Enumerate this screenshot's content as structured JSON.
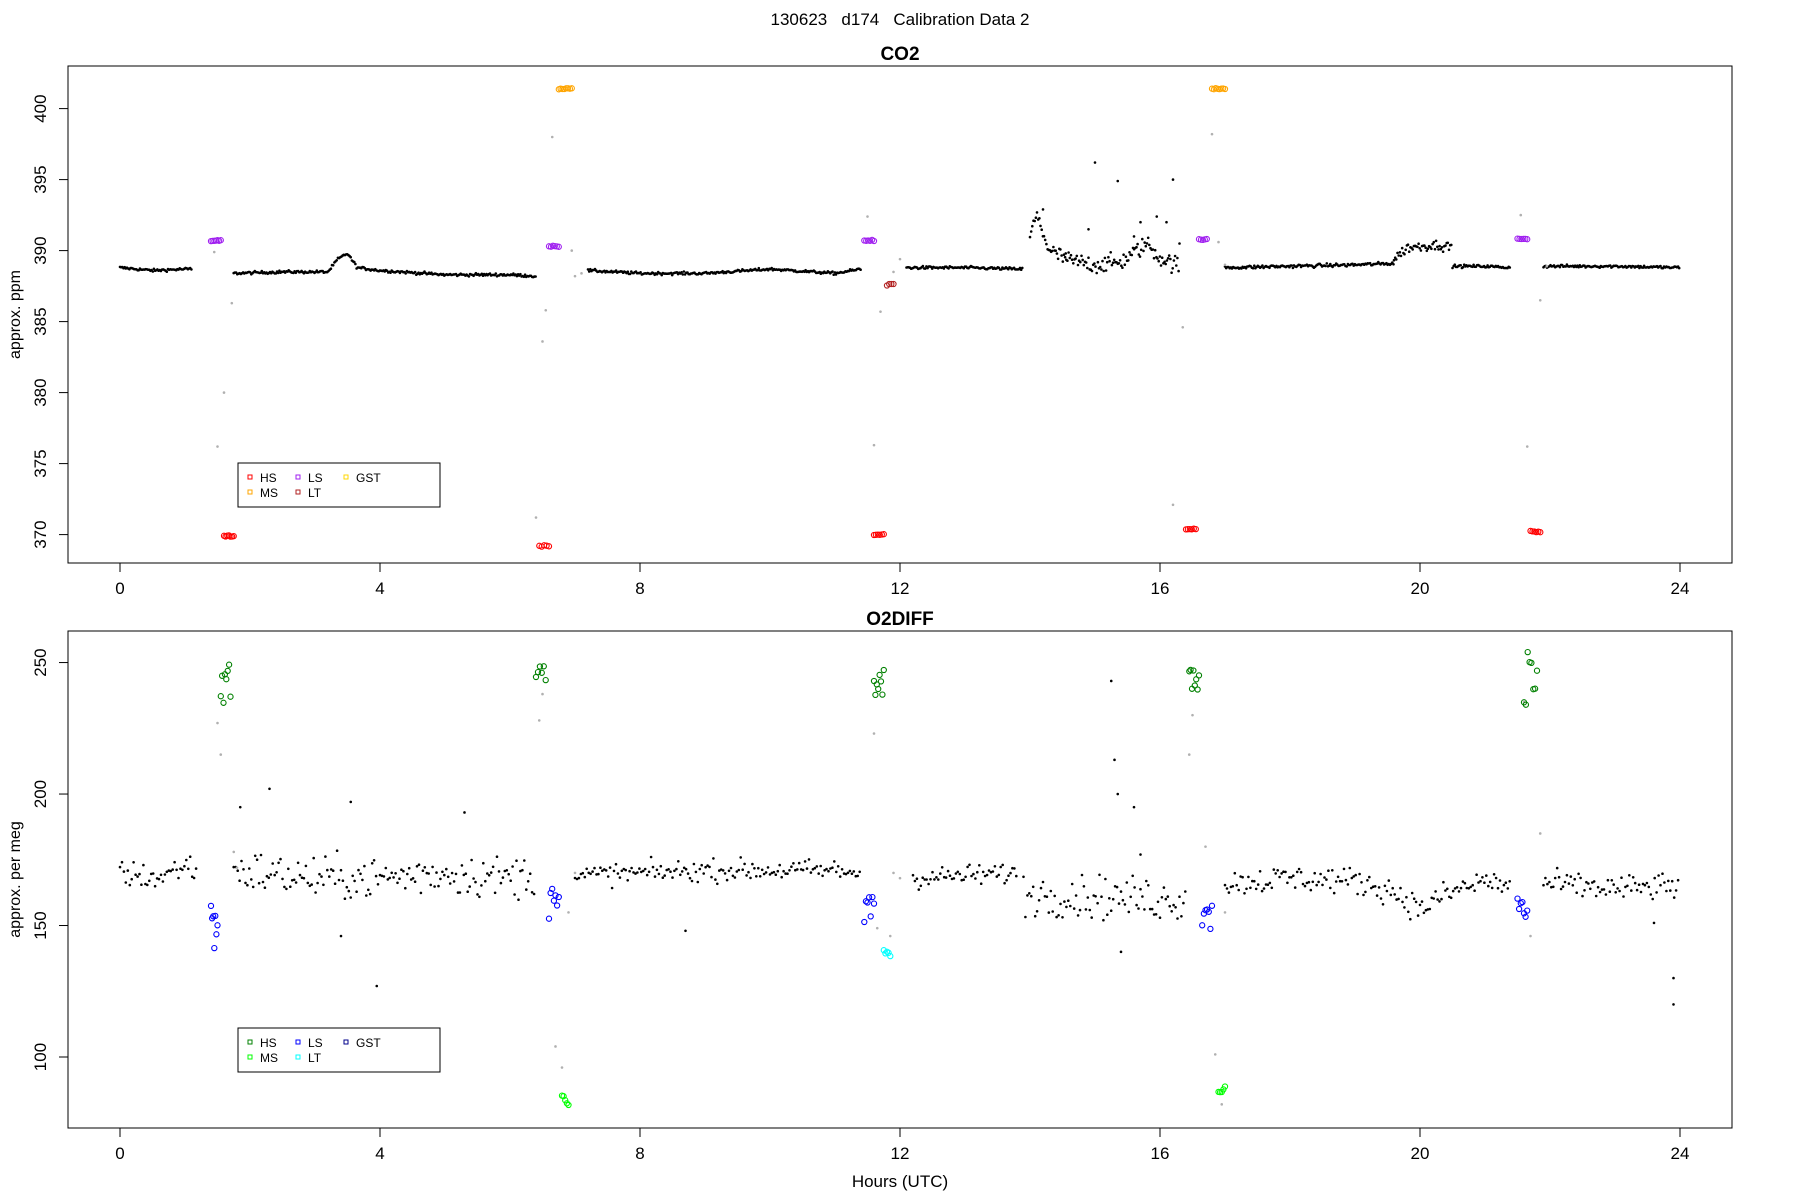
{
  "figure": {
    "title": "130623   d174   Calibration Data 2",
    "xlabel": "Hours (UTC)"
  },
  "chart_data": [
    {
      "type": "scatter",
      "id": "co2",
      "title": "CO2",
      "xlabel": "",
      "ylabel": "approx. ppm",
      "xlim": [
        -0.8,
        24.8
      ],
      "ylim": [
        368,
        403
      ],
      "xticks": [
        0,
        4,
        8,
        12,
        16,
        20,
        24
      ],
      "yticks": [
        370,
        375,
        380,
        385,
        390,
        395,
        400
      ],
      "grid": false,
      "legend": {
        "placement": "bottom-left",
        "entries": [
          {
            "label": "HS",
            "color": "#ff0000"
          },
          {
            "label": "MS",
            "color": "#ffa500"
          },
          {
            "label": "LS",
            "color": "#a020f0"
          },
          {
            "label": "LT",
            "color": "#b22222"
          },
          {
            "label": "GST",
            "color": "#ffd700"
          }
        ]
      },
      "baseline_segments": [
        {
          "x": [
            0.0,
            0.5,
            1.0,
            1.1
          ],
          "y": [
            388.8,
            388.6,
            388.7,
            388.7
          ],
          "noise": 0.1,
          "color": "#000000"
        },
        {
          "x": [
            1.75,
            2.5,
            3.2,
            3.35,
            3.5,
            3.65,
            4.0,
            5.0,
            6.0,
            6.4
          ],
          "y": [
            388.4,
            388.5,
            388.5,
            389.4,
            389.8,
            388.8,
            388.6,
            388.3,
            388.3,
            388.2
          ],
          "noise": 0.1,
          "color": "#000000"
        },
        {
          "x": [
            7.2,
            8.0,
            9.0,
            10.0,
            11.0,
            11.4
          ],
          "y": [
            388.6,
            388.4,
            388.4,
            388.7,
            388.4,
            388.7
          ],
          "noise": 0.1,
          "color": "#000000"
        },
        {
          "x": [
            12.1,
            13.0,
            13.9
          ],
          "y": [
            388.8,
            388.8,
            388.7
          ],
          "noise": 0.1,
          "color": "#000000"
        },
        {
          "x": [
            14.0,
            14.1,
            14.3,
            14.6,
            15.0,
            15.4,
            15.8,
            16.0,
            16.3
          ],
          "y": [
            391.0,
            392.5,
            390.0,
            389.3,
            389.0,
            389.2,
            390.5,
            389.5,
            388.9
          ],
          "noise": 0.6,
          "color": "#000000"
        },
        {
          "x": [
            17.0,
            18.0,
            19.0,
            19.6
          ],
          "y": [
            388.8,
            388.9,
            389.0,
            389.1
          ],
          "noise": 0.12,
          "color": "#000000"
        },
        {
          "x": [
            19.6,
            19.8,
            20.0,
            20.3,
            20.5
          ],
          "y": [
            389.4,
            390.2,
            390.3,
            390.4,
            390.2
          ],
          "noise": 0.35,
          "color": "#000000"
        },
        {
          "x": [
            20.5,
            21.0,
            21.4
          ],
          "y": [
            388.9,
            388.9,
            388.8
          ],
          "noise": 0.1,
          "color": "#000000"
        },
        {
          "x": [
            21.9,
            23.0,
            24.0
          ],
          "y": [
            388.9,
            388.9,
            388.8
          ],
          "noise": 0.1,
          "color": "#000000"
        }
      ],
      "gray_points": [
        [
          1.5,
          376.2
        ],
        [
          1.6,
          380.0
        ],
        [
          1.72,
          386.3
        ],
        [
          1.45,
          389.9
        ],
        [
          6.4,
          371.2
        ],
        [
          6.5,
          383.6
        ],
        [
          6.55,
          385.8
        ],
        [
          6.65,
          398.0
        ],
        [
          6.95,
          390.0
        ],
        [
          7.0,
          388.2
        ],
        [
          7.1,
          388.4
        ],
        [
          11.5,
          392.4
        ],
        [
          11.6,
          376.3
        ],
        [
          11.7,
          385.7
        ],
        [
          11.9,
          388.5
        ],
        [
          12.0,
          389.4
        ],
        [
          16.2,
          372.1
        ],
        [
          16.35,
          384.6
        ],
        [
          16.8,
          398.2
        ],
        [
          17.0,
          389.0
        ],
        [
          16.9,
          390.6
        ],
        [
          21.55,
          392.5
        ],
        [
          21.65,
          376.2
        ],
        [
          21.85,
          386.5
        ],
        [
          21.95,
          388.9
        ]
      ],
      "outlier_points": [
        [
          14.2,
          392.9
        ],
        [
          14.55,
          389.8
        ],
        [
          15.0,
          396.2
        ],
        [
          15.35,
          394.9
        ],
        [
          15.7,
          392.0
        ],
        [
          16.2,
          395.0
        ],
        [
          15.95,
          392.4
        ],
        [
          16.1,
          392.0
        ],
        [
          16.3,
          390.5
        ],
        [
          14.9,
          391.5
        ],
        [
          15.6,
          391.0
        ]
      ],
      "cal_clusters": [
        {
          "gas": "LS",
          "color": "#a020f0",
          "x": [
            1.4,
            1.55
          ],
          "y": 390.7,
          "n": 7
        },
        {
          "gas": "HS",
          "color": "#ff0000",
          "x": [
            1.6,
            1.75
          ],
          "y": 369.9,
          "n": 7
        },
        {
          "gas": "HS",
          "color": "#ff0000",
          "x": [
            6.45,
            6.6
          ],
          "y": 369.2,
          "n": 5
        },
        {
          "gas": "LS",
          "color": "#a020f0",
          "x": [
            6.6,
            6.75
          ],
          "y": 390.3,
          "n": 6
        },
        {
          "gas": "MS",
          "color": "#ffa500",
          "x": [
            6.75,
            6.95
          ],
          "y": 401.4,
          "n": 8
        },
        {
          "gas": "LS",
          "color": "#a020f0",
          "x": [
            11.45,
            11.6
          ],
          "y": 390.7,
          "n": 6
        },
        {
          "gas": "HS",
          "color": "#ff0000",
          "x": [
            11.6,
            11.75
          ],
          "y": 370.0,
          "n": 6
        },
        {
          "gas": "LT",
          "color": "#b22222",
          "x": [
            11.8,
            11.9
          ],
          "y": 387.6,
          "n": 4
        },
        {
          "gas": "HS",
          "color": "#ff0000",
          "x": [
            16.4,
            16.55
          ],
          "y": 370.4,
          "n": 6
        },
        {
          "gas": "LS",
          "color": "#a020f0",
          "x": [
            16.6,
            16.72
          ],
          "y": 390.8,
          "n": 5
        },
        {
          "gas": "MS",
          "color": "#ffa500",
          "x": [
            16.8,
            17.0
          ],
          "y": 401.4,
          "n": 8
        },
        {
          "gas": "LS",
          "color": "#a020f0",
          "x": [
            21.5,
            21.65
          ],
          "y": 390.8,
          "n": 6
        },
        {
          "gas": "HS",
          "color": "#ff0000",
          "x": [
            21.7,
            21.85
          ],
          "y": 370.2,
          "n": 6
        }
      ]
    },
    {
      "type": "scatter",
      "id": "o2diff",
      "title": "O2DIFF",
      "xlabel": "Hours (UTC)",
      "ylabel": "approx. per meg",
      "xlim": [
        -0.8,
        24.8
      ],
      "ylim": [
        73,
        262
      ],
      "xticks": [
        0,
        4,
        8,
        12,
        16,
        20,
        24
      ],
      "yticks": [
        100,
        150,
        200,
        250
      ],
      "grid": false,
      "legend": {
        "placement": "bottom-left",
        "entries": [
          {
            "label": "HS",
            "color": "#008000"
          },
          {
            "label": "MS",
            "color": "#00ff00"
          },
          {
            "label": "LS",
            "color": "#0000ff"
          },
          {
            "label": "LT",
            "color": "#00ffff"
          },
          {
            "label": "GST",
            "color": "#00008b"
          }
        ]
      },
      "baseline_segments": [
        {
          "x": [
            0.0,
            0.6,
            1.0,
            1.2
          ],
          "y": [
            170,
            168,
            173,
            171
          ],
          "noise": 5,
          "color": "#000000"
        },
        {
          "x": [
            1.75,
            3.0,
            4.0,
            5.0,
            6.0,
            6.4
          ],
          "y": [
            171,
            168,
            168,
            170,
            168,
            170
          ],
          "noise": 8,
          "color": "#000000"
        },
        {
          "x": [
            7.0,
            8.0,
            9.0,
            10.0,
            11.0,
            11.4
          ],
          "y": [
            169,
            170,
            171,
            171,
            171,
            170
          ],
          "noise": 4,
          "color": "#000000"
        },
        {
          "x": [
            12.2,
            13.0,
            13.8
          ],
          "y": [
            168,
            169,
            170
          ],
          "noise": 4,
          "color": "#000000"
        },
        {
          "x": [
            13.9,
            15.0,
            16.0,
            16.4
          ],
          "y": [
            162,
            161,
            160,
            160
          ],
          "noise": 8,
          "color": "#000000"
        },
        {
          "x": [
            17.0,
            18.0,
            19.0,
            19.6,
            20.0,
            20.4,
            21.0,
            21.4
          ],
          "y": [
            166,
            168,
            167,
            163,
            156,
            162,
            167,
            165
          ],
          "noise": 5,
          "color": "#000000"
        },
        {
          "x": [
            21.9,
            23.0,
            24.0
          ],
          "y": [
            166,
            164,
            165
          ],
          "noise": 5,
          "color": "#000000"
        }
      ],
      "gray_points": [
        [
          1.55,
          215
        ],
        [
          1.5,
          227
        ],
        [
          1.75,
          178
        ],
        [
          1.8,
          172
        ],
        [
          6.45,
          228
        ],
        [
          6.5,
          238
        ],
        [
          6.7,
          104
        ],
        [
          6.8,
          96
        ],
        [
          6.9,
          155
        ],
        [
          7.0,
          170
        ],
        [
          11.6,
          223
        ],
        [
          11.65,
          149
        ],
        [
          11.85,
          146
        ],
        [
          11.9,
          170
        ],
        [
          12.0,
          168
        ],
        [
          16.45,
          215
        ],
        [
          16.5,
          230
        ],
        [
          16.7,
          180
        ],
        [
          16.85,
          101
        ],
        [
          16.95,
          82
        ],
        [
          17.0,
          155
        ],
        [
          21.6,
          235
        ],
        [
          21.7,
          146
        ],
        [
          21.85,
          185
        ]
      ],
      "outlier_points": [
        [
          1.85,
          195
        ],
        [
          2.3,
          202
        ],
        [
          3.55,
          197
        ],
        [
          3.95,
          127
        ],
        [
          5.3,
          193
        ],
        [
          8.7,
          148
        ],
        [
          15.25,
          243
        ],
        [
          15.3,
          213
        ],
        [
          15.35,
          200
        ],
        [
          15.6,
          195
        ],
        [
          15.7,
          177
        ],
        [
          15.4,
          140
        ],
        [
          23.9,
          130
        ],
        [
          23.9,
          120
        ],
        [
          23.6,
          151
        ],
        [
          3.4,
          146
        ]
      ],
      "cal_clusters": [
        {
          "gas": "LS",
          "color": "#0000ff",
          "x": [
            1.4,
            1.5
          ],
          "y_range": [
            140,
            162
          ],
          "n": 7
        },
        {
          "gas": "HS",
          "color": "#008000",
          "x": [
            1.55,
            1.7
          ],
          "y_range": [
            232,
            250
          ],
          "n": 8
        },
        {
          "gas": "LS",
          "color": "#0000ff",
          "x": [
            6.6,
            6.75
          ],
          "y_range": [
            152,
            164
          ],
          "n": 7
        },
        {
          "gas": "HS",
          "color": "#008000",
          "x": [
            6.4,
            6.55
          ],
          "y_range": [
            243,
            249
          ],
          "n": 6
        },
        {
          "gas": "MS",
          "color": "#00ff00",
          "x": [
            6.8,
            6.9
          ],
          "y_range": [
            80,
            86
          ],
          "n": 5
        },
        {
          "gas": "LS",
          "color": "#0000ff",
          "x": [
            11.45,
            11.6
          ],
          "y_range": [
            149,
            161
          ],
          "n": 7
        },
        {
          "gas": "HS",
          "color": "#008000",
          "x": [
            11.6,
            11.75
          ],
          "y_range": [
            237,
            252
          ],
          "n": 8
        },
        {
          "gas": "LT",
          "color": "#00ffff",
          "x": [
            11.75,
            11.85
          ],
          "y_range": [
            136,
            141
          ],
          "n": 5
        },
        {
          "gas": "HS",
          "color": "#008000",
          "x": [
            16.45,
            16.6
          ],
          "y_range": [
            238,
            248
          ],
          "n": 8
        },
        {
          "gas": "LS",
          "color": "#0000ff",
          "x": [
            16.65,
            16.8
          ],
          "y_range": [
            146,
            159
          ],
          "n": 7
        },
        {
          "gas": "MS",
          "color": "#00ff00",
          "x": [
            16.9,
            17.0
          ],
          "y_range": [
            86,
            89
          ],
          "n": 5
        },
        {
          "gas": "LS",
          "color": "#0000ff",
          "x": [
            21.5,
            21.65
          ],
          "y_range": [
            152,
            166
          ],
          "n": 7
        },
        {
          "gas": "HS",
          "color": "#008000",
          "x": [
            21.6,
            21.8
          ],
          "y_range": [
            233,
            254
          ],
          "n": 8
        }
      ]
    }
  ]
}
